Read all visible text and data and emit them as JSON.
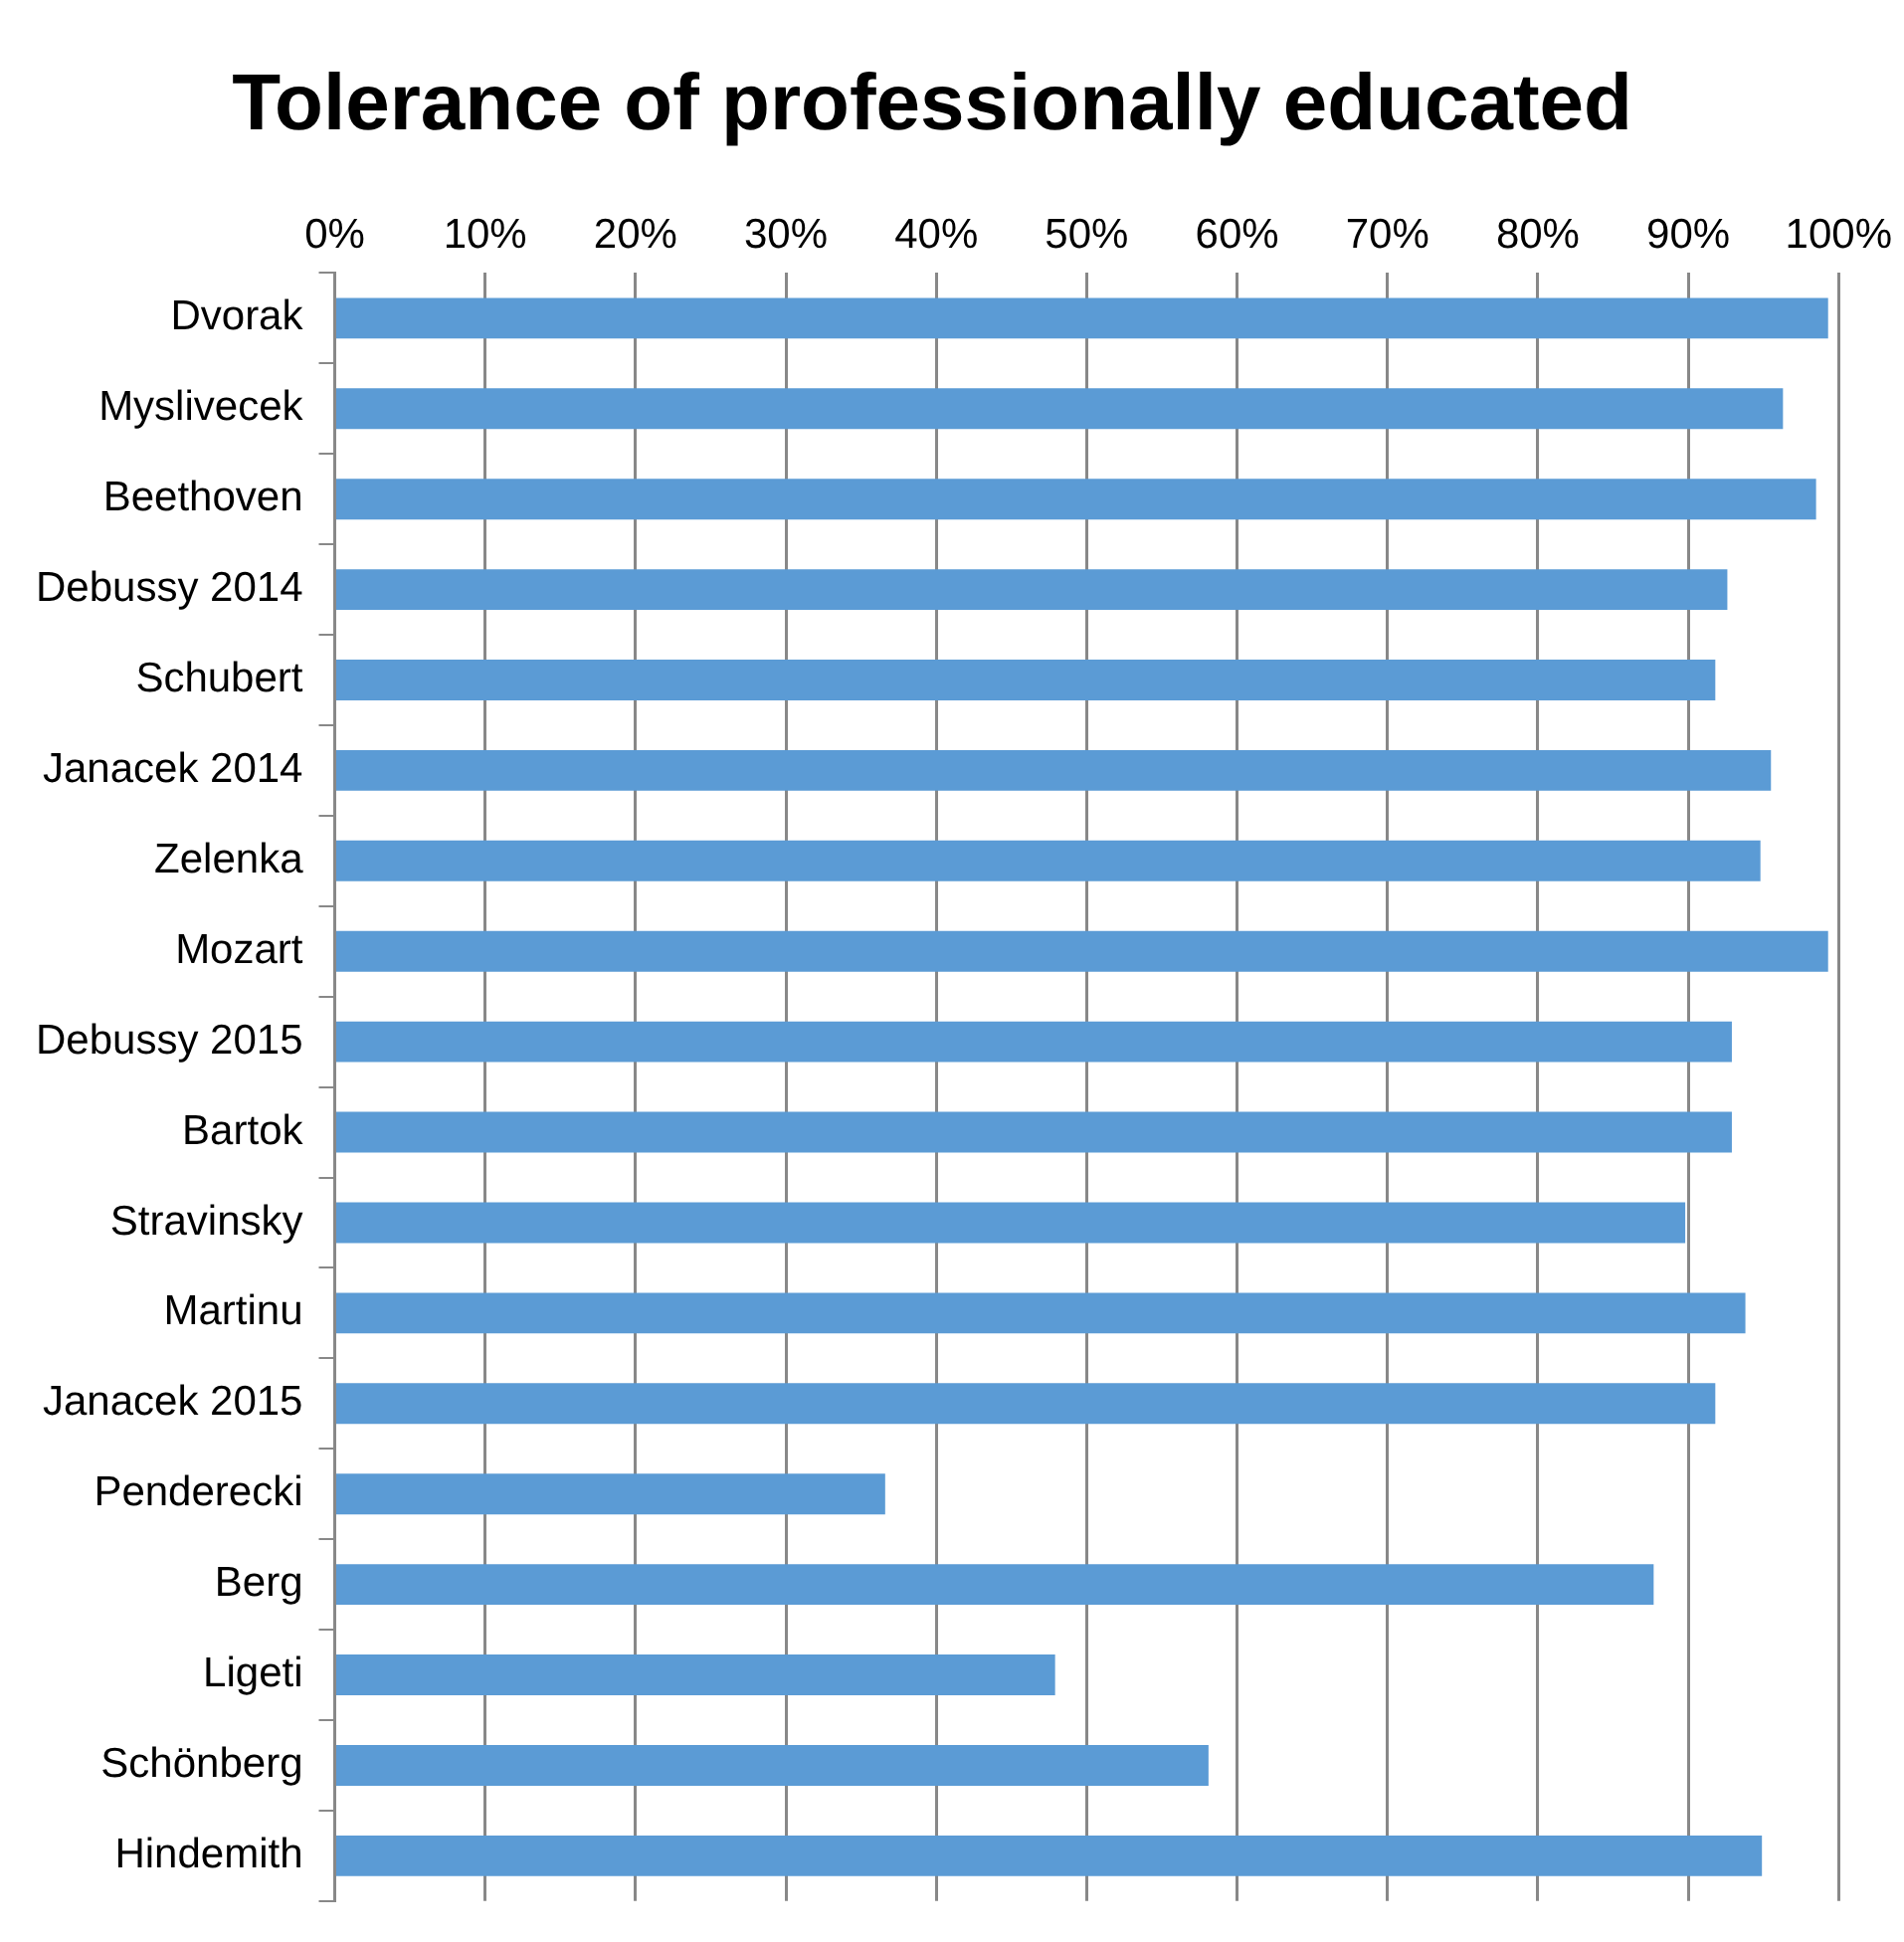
{
  "chart_data": {
    "type": "bar",
    "orientation": "horizontal",
    "title": "Tolerance of professionally educated",
    "categories": [
      "Dvorak",
      "Myslivecek",
      "Beethoven",
      "Debussy 2014",
      "Schubert",
      "Janacek 2014",
      "Zelenka",
      "Mozart",
      "Debussy 2015",
      "Bartok",
      "Stravinsky",
      "Martinu",
      "Janacek 2015",
      "Penderecki",
      "Berg",
      "Ligeti",
      "Schönberg",
      "Hindemith"
    ],
    "values": [
      99.3,
      96.3,
      98.5,
      92.6,
      91.8,
      95.5,
      94.8,
      99.3,
      92.9,
      92.9,
      89.8,
      93.8,
      91.8,
      36.6,
      87.7,
      47.9,
      58.1,
      94.9
    ],
    "color": "#5b9bd5",
    "xlim": [
      0,
      100
    ],
    "xticks": [
      {
        "value": 0,
        "label": "0%"
      },
      {
        "value": 10,
        "label": "10%"
      },
      {
        "value": 20,
        "label": "20%"
      },
      {
        "value": 30,
        "label": "30%"
      },
      {
        "value": 40,
        "label": "40%"
      },
      {
        "value": 50,
        "label": "50%"
      },
      {
        "value": 60,
        "label": "60%"
      },
      {
        "value": 70,
        "label": "70%"
      },
      {
        "value": 80,
        "label": "80%"
      },
      {
        "value": 90,
        "label": "90%"
      },
      {
        "value": 100,
        "label": "100%"
      }
    ],
    "grid": "x",
    "legend": false
  }
}
